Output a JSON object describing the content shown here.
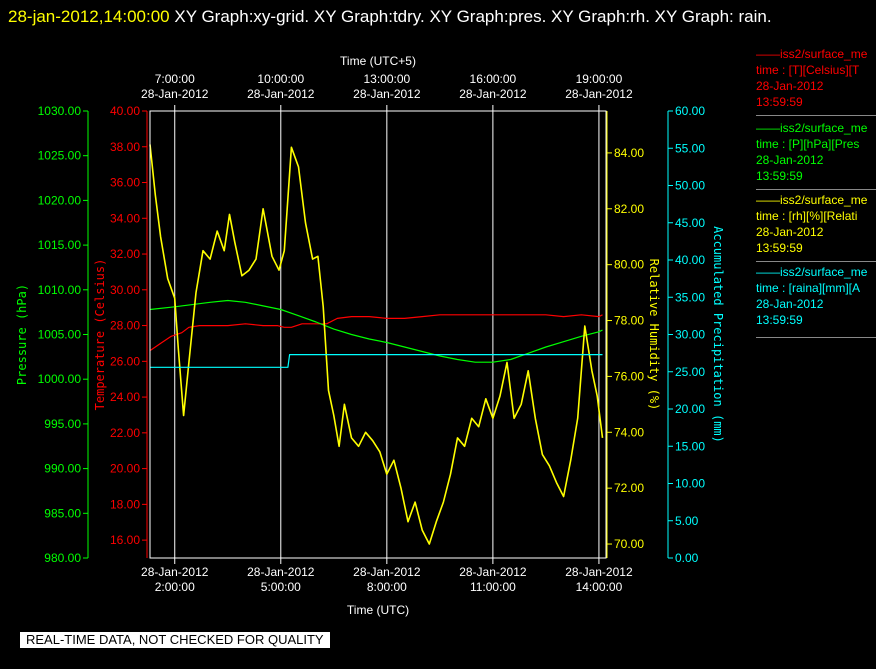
{
  "title": {
    "datetime": "28-jan-2012,14:00:00",
    "rest": "  XY Graph:xy-grid.  XY Graph:tdry.  XY Graph:pres.  XY Graph:rh.  XY Graph: rain."
  },
  "colors": {
    "pressure": "#00ff00",
    "temperature": "#ff0000",
    "humidity": "#ffff00",
    "precip": "#00ffff",
    "axis": "#ffffff",
    "grid": "#ffffff"
  },
  "legend": [
    {
      "color": "#ff0000",
      "name": "——iss2/surface_me",
      "field": "time : [T][Celsius][T",
      "date": "28-Jan-2012",
      "time": "13:59:59"
    },
    {
      "color": "#00ff00",
      "name": "——iss2/surface_me",
      "field": "time : [P][hPa][Pres",
      "date": "28-Jan-2012",
      "time": "13:59:59"
    },
    {
      "color": "#ffff00",
      "name": "——iss2/surface_me",
      "field": "time : [rh][%][Relati",
      "date": "28-Jan-2012",
      "time": "13:59:59"
    },
    {
      "color": "#00ffff",
      "name": "——iss2/surface_me",
      "field": "time : [raina][mm][A",
      "date": "28-Jan-2012",
      "time": "13:59:59"
    }
  ],
  "disclaimer": "REAL-TIME DATA, NOT CHECKED FOR QUALITY",
  "chart_data": {
    "type": "line",
    "grid": true,
    "x_range": [
      1.3,
      14.2
    ],
    "top_axis": {
      "label": "Time (UTC+5)",
      "ticks": [
        {
          "x": 2,
          "line1": "7:00:00",
          "line2": "28-Jan-2012"
        },
        {
          "x": 5,
          "line1": "10:00:00",
          "line2": "28-Jan-2012"
        },
        {
          "x": 8,
          "line1": "13:00:00",
          "line2": "28-Jan-2012"
        },
        {
          "x": 11,
          "line1": "16:00:00",
          "line2": "28-Jan-2012"
        },
        {
          "x": 14,
          "line1": "19:00:00",
          "line2": "28-Jan-2012"
        }
      ]
    },
    "bottom_axis": {
      "label": "Time (UTC)",
      "ticks": [
        {
          "x": 2,
          "line1": "28-Jan-2012",
          "line2": "2:00:00"
        },
        {
          "x": 5,
          "line1": "28-Jan-2012",
          "line2": "5:00:00"
        },
        {
          "x": 8,
          "line1": "28-Jan-2012",
          "line2": "8:00:00"
        },
        {
          "x": 11,
          "line1": "28-Jan-2012",
          "line2": "11:00:00"
        },
        {
          "x": 14,
          "line1": "28-Jan-2012",
          "line2": "14:00:00"
        }
      ]
    },
    "axes": {
      "pressure": {
        "label": "Pressure (hPa)",
        "range": [
          980,
          1030
        ],
        "ticks": [
          "980.00",
          "985.00",
          "990.00",
          "995.00",
          "1000.00",
          "1005.00",
          "1010.00",
          "1015.00",
          "1020.00",
          "1025.00",
          "1030.00"
        ]
      },
      "temperature": {
        "label": "Temperature (Celsius)",
        "range": [
          15,
          40
        ],
        "ticks": [
          "16.00",
          "18.00",
          "20.00",
          "22.00",
          "24.00",
          "26.00",
          "28.00",
          "30.00",
          "32.00",
          "34.00",
          "36.00",
          "38.00",
          "40.00"
        ]
      },
      "humidity": {
        "label": "Relative Humidity (%)",
        "range": [
          69.5,
          85.5
        ],
        "ticks": [
          "70.00",
          "72.00",
          "74.00",
          "76.00",
          "78.00",
          "80.00",
          "82.00",
          "84.00"
        ]
      },
      "precip": {
        "label": "Accumulated Precipitation (mm)",
        "range": [
          0,
          60
        ],
        "ticks": [
          "0.00",
          "5.00",
          "10.00",
          "15.00",
          "20.00",
          "25.00",
          "30.00",
          "35.00",
          "40.00",
          "45.00",
          "50.00",
          "55.00",
          "60.00"
        ]
      }
    },
    "series": [
      {
        "axis": "temperature",
        "x": [
          1.3,
          1.6,
          1.9,
          2.2,
          2.4,
          2.7,
          3.0,
          3.5,
          4.0,
          4.5,
          4.9,
          5.1,
          5.3,
          5.6,
          6.0,
          6.3,
          6.6,
          7.0,
          7.5,
          8.0,
          8.5,
          9.0,
          9.5,
          10.0,
          10.5,
          11.0,
          11.5,
          12.0,
          12.5,
          13.0,
          13.5,
          14.0,
          14.1
        ],
        "values": [
          26.6,
          27.0,
          27.4,
          27.6,
          27.9,
          28.0,
          28.0,
          28.0,
          28.1,
          28.0,
          28.0,
          27.9,
          27.9,
          28.1,
          28.1,
          28.1,
          28.4,
          28.5,
          28.5,
          28.4,
          28.4,
          28.5,
          28.6,
          28.6,
          28.6,
          28.6,
          28.6,
          28.6,
          28.6,
          28.5,
          28.6,
          28.5,
          28.6
        ]
      },
      {
        "axis": "pressure",
        "x": [
          1.3,
          2.0,
          3.0,
          3.5,
          4.0,
          4.5,
          5.0,
          5.5,
          6.0,
          6.5,
          7.0,
          7.5,
          8.0,
          8.5,
          9.0,
          9.5,
          10.0,
          10.5,
          11.0,
          11.5,
          12.0,
          12.5,
          13.0,
          13.5,
          14.0,
          14.1
        ],
        "values": [
          1007.8,
          1008.1,
          1008.6,
          1008.8,
          1008.6,
          1008.2,
          1007.8,
          1007.1,
          1006.4,
          1005.6,
          1005.0,
          1004.5,
          1004.1,
          1003.6,
          1003.1,
          1002.6,
          1002.2,
          1001.9,
          1001.9,
          1002.2,
          1002.9,
          1003.6,
          1004.2,
          1004.8,
          1005.3,
          1005.5
        ]
      },
      {
        "axis": "humidity",
        "x": [
          1.3,
          1.45,
          1.6,
          1.8,
          2.0,
          2.1,
          2.25,
          2.4,
          2.6,
          2.8,
          3.0,
          3.2,
          3.4,
          3.55,
          3.7,
          3.9,
          4.1,
          4.3,
          4.5,
          4.75,
          4.95,
          5.1,
          5.3,
          5.5,
          5.7,
          5.9,
          6.05,
          6.2,
          6.35,
          6.5,
          6.65,
          6.8,
          7.0,
          7.2,
          7.4,
          7.6,
          7.8,
          8.0,
          8.2,
          8.4,
          8.6,
          8.8,
          9.0,
          9.2,
          9.4,
          9.6,
          9.8,
          10.0,
          10.2,
          10.4,
          10.6,
          10.8,
          11.0,
          11.2,
          11.4,
          11.6,
          11.8,
          12.0,
          12.2,
          12.4,
          12.6,
          12.8,
          13.0,
          13.2,
          13.4,
          13.6,
          13.8,
          13.95,
          14.1
        ],
        "values": [
          84.3,
          82.5,
          81.0,
          79.5,
          78.8,
          77.0,
          74.6,
          76.5,
          79.0,
          80.5,
          80.2,
          81.2,
          80.5,
          81.8,
          80.8,
          79.6,
          79.8,
          80.2,
          82.0,
          80.3,
          79.8,
          80.5,
          84.2,
          83.5,
          81.5,
          80.2,
          80.3,
          78.5,
          75.5,
          74.6,
          73.5,
          75.0,
          73.8,
          73.5,
          74.0,
          73.7,
          73.3,
          72.5,
          73.0,
          72.0,
          70.8,
          71.5,
          70.5,
          70.0,
          70.8,
          71.5,
          72.5,
          73.8,
          73.5,
          74.5,
          74.2,
          75.2,
          74.5,
          75.3,
          76.5,
          74.5,
          75.0,
          76.2,
          74.5,
          73.2,
          72.8,
          72.2,
          71.7,
          73.0,
          74.5,
          77.8,
          76.2,
          75.3,
          73.8
        ]
      },
      {
        "axis": "precip",
        "x": [
          1.3,
          2.0,
          3.0,
          4.0,
          5.0,
          5.2,
          5.25,
          5.5,
          6.0,
          7.0,
          8.0,
          9.0,
          10.0,
          11.0,
          12.0,
          13.0,
          14.0,
          14.1
        ],
        "values": [
          25.6,
          25.6,
          25.6,
          25.6,
          25.6,
          25.6,
          27.3,
          27.3,
          27.3,
          27.3,
          27.3,
          27.3,
          27.3,
          27.3,
          27.3,
          27.3,
          27.3,
          27.3
        ]
      }
    ]
  }
}
